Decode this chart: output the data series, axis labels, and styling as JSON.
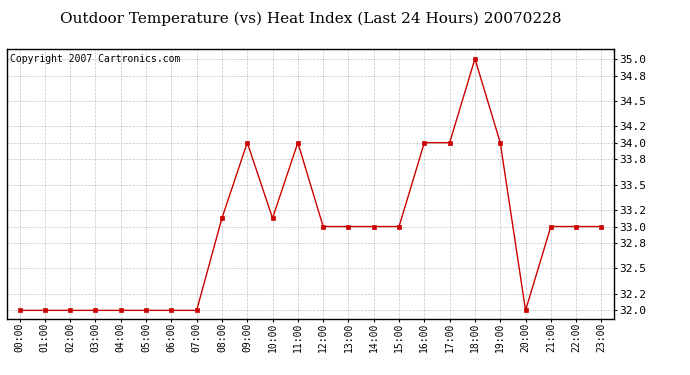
{
  "title": "Outdoor Temperature (vs) Heat Index (Last 24 Hours) 20070228",
  "copyright": "Copyright 2007 Cartronics.com",
  "hours": [
    "00:00",
    "01:00",
    "02:00",
    "03:00",
    "04:00",
    "05:00",
    "06:00",
    "07:00",
    "08:00",
    "09:00",
    "10:00",
    "11:00",
    "12:00",
    "13:00",
    "14:00",
    "15:00",
    "16:00",
    "17:00",
    "18:00",
    "19:00",
    "20:00",
    "21:00",
    "22:00",
    "23:00"
  ],
  "values": [
    32.0,
    32.0,
    32.0,
    32.0,
    32.0,
    32.0,
    32.0,
    32.0,
    33.1,
    34.0,
    33.1,
    34.0,
    33.0,
    33.0,
    33.0,
    33.0,
    34.0,
    34.0,
    35.0,
    34.0,
    32.0,
    33.0,
    33.0,
    33.0
  ],
  "ylim_min": 31.9,
  "ylim_max": 35.12,
  "yticks": [
    32.0,
    32.2,
    32.5,
    32.8,
    33.0,
    33.2,
    33.5,
    33.8,
    34.0,
    34.2,
    34.5,
    34.8,
    35.0
  ],
  "line_color": "#cc0000",
  "marker": "s",
  "marker_size": 2.5,
  "bg_color": "#ffffff",
  "grid_color": "#aaaaaa",
  "title_fontsize": 11,
  "copyright_fontsize": 7,
  "tick_fontsize": 7,
  "ytick_fontsize": 8
}
